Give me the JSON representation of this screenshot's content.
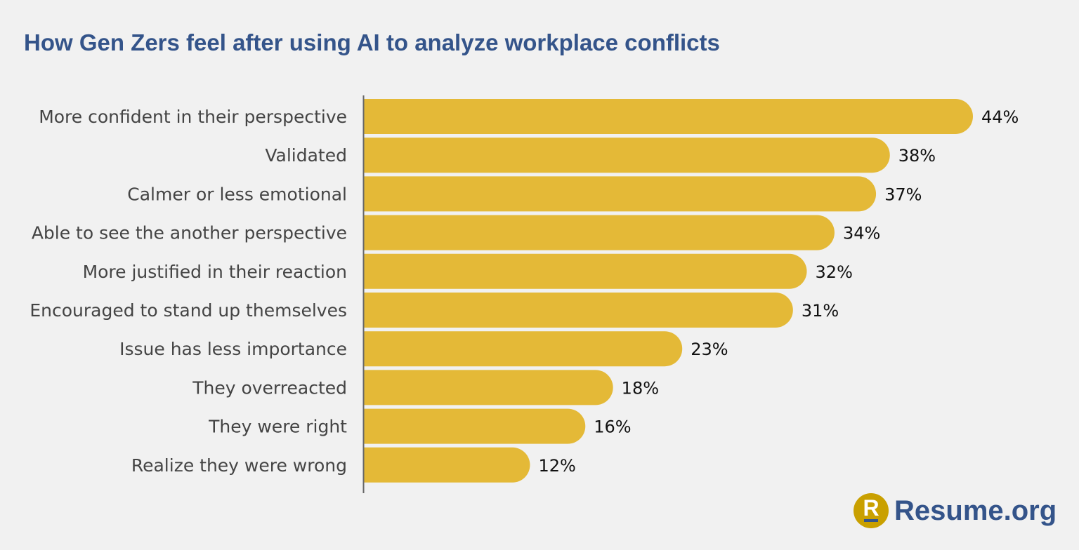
{
  "chart_data": {
    "type": "bar",
    "orientation": "horizontal",
    "title": "How Gen Zers feel after using AI to analyze workplace conflicts",
    "categories": [
      "More confident in their perspective",
      "Validated",
      "Calmer or less emotional",
      "Able to see the another perspective",
      "More justified in their reaction",
      "Encouraged to stand up themselves",
      "Issue has less importance",
      "They overreacted",
      "They were right",
      "Realize they were wrong"
    ],
    "values": [
      44,
      38,
      37,
      34,
      32,
      31,
      23,
      18,
      16,
      12
    ],
    "value_labels": [
      "44%",
      "38%",
      "37%",
      "34%",
      "32%",
      "31%",
      "23%",
      "18%",
      "16%",
      "12%"
    ],
    "unit": "%",
    "xlim": [
      0,
      44
    ],
    "grid": false,
    "legend": "none",
    "bar_color": "#e4b937",
    "title_color": "#34548a"
  },
  "logo": {
    "text": "Resume.org",
    "mark": "R"
  }
}
